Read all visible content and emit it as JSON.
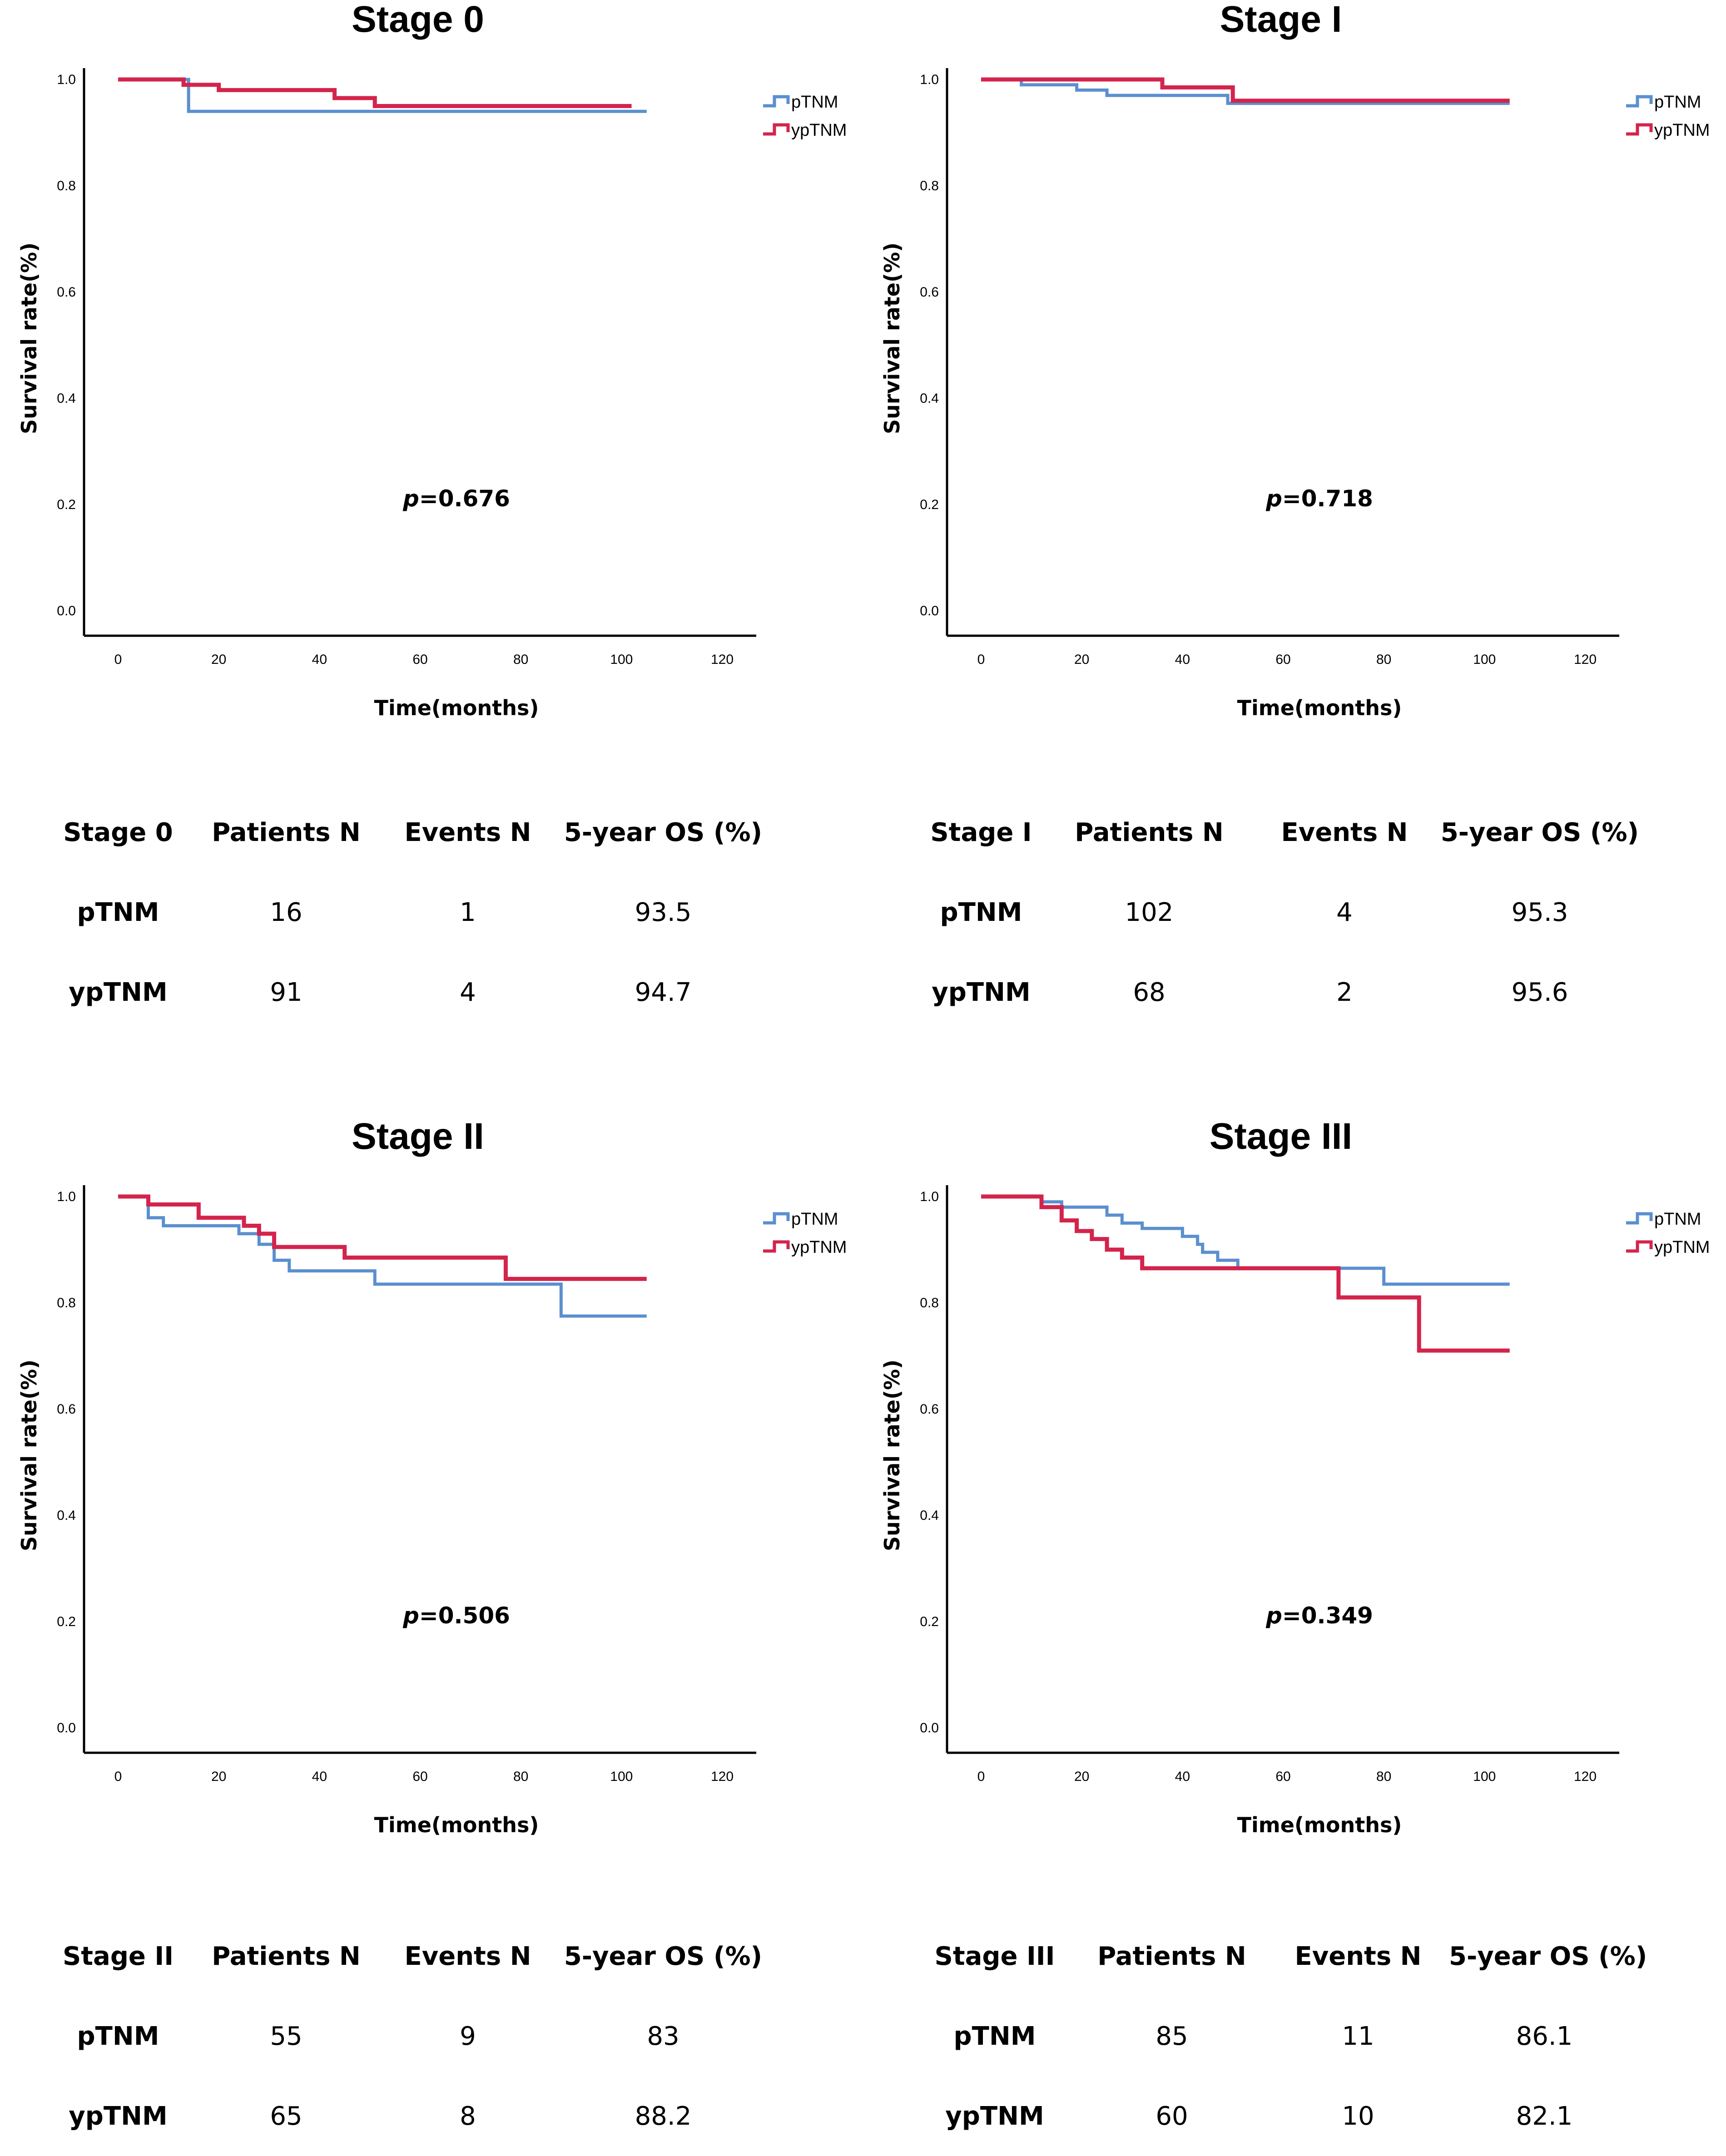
{
  "colors": {
    "pTNM": "#5b8fcf",
    "ypTNM": "#d3244c",
    "axis": "#000000"
  },
  "chart_data": [
    {
      "type": "line",
      "title": "Stage 0",
      "xlabel": "Time(months)",
      "ylabel": "Survival rate(%)",
      "xlim": [
        0,
        120
      ],
      "ylim": [
        0,
        1
      ],
      "xticks": [
        "0",
        "20",
        "40",
        "60",
        "80",
        "100",
        "120"
      ],
      "yticks": [
        "0.0",
        "0.2",
        "0.4",
        "0.6",
        "0.8",
        "1.0"
      ],
      "legend": [
        "pTNM",
        "ypTNM"
      ],
      "annotation": {
        "italic": "p",
        "rest": "=0.676"
      },
      "series": [
        {
          "name": "pTNM",
          "x": [
            0,
            13,
            14,
            105
          ],
          "y": [
            1.0,
            1.0,
            0.94,
            0.94
          ]
        },
        {
          "name": "ypTNM",
          "x": [
            0,
            13,
            20,
            43,
            51,
            102
          ],
          "y": [
            1.0,
            0.99,
            0.98,
            0.965,
            0.95,
            0.95
          ]
        }
      ]
    },
    {
      "type": "line",
      "title": "Stage I",
      "xlabel": "Time(months)",
      "ylabel": "Survival rate(%)",
      "xlim": [
        0,
        120
      ],
      "ylim": [
        0,
        1
      ],
      "xticks": [
        "0",
        "20",
        "40",
        "60",
        "80",
        "100",
        "120"
      ],
      "yticks": [
        "0.0",
        "0.2",
        "0.4",
        "0.6",
        "0.8",
        "1.0"
      ],
      "legend": [
        "pTNM",
        "ypTNM"
      ],
      "annotation": {
        "italic": "p",
        "rest": "=0.718"
      },
      "series": [
        {
          "name": "pTNM",
          "x": [
            0,
            8,
            19,
            25,
            49,
            105
          ],
          "y": [
            1.0,
            0.99,
            0.98,
            0.97,
            0.955,
            0.955
          ]
        },
        {
          "name": "ypTNM",
          "x": [
            0,
            36,
            50,
            105
          ],
          "y": [
            1.0,
            0.985,
            0.96,
            0.96
          ]
        }
      ]
    },
    {
      "type": "line",
      "title": "Stage II",
      "xlabel": "Time(months)",
      "ylabel": "Survival rate(%)",
      "xlim": [
        0,
        120
      ],
      "ylim": [
        0,
        1
      ],
      "xticks": [
        "0",
        "20",
        "40",
        "60",
        "80",
        "100",
        "120"
      ],
      "yticks": [
        "0.0",
        "0.2",
        "0.4",
        "0.6",
        "0.8",
        "1.0"
      ],
      "legend": [
        "pTNM",
        "ypTNM"
      ],
      "annotation": {
        "italic": "p",
        "rest": "=0.506"
      },
      "series": [
        {
          "name": "pTNM",
          "x": [
            0,
            6,
            9,
            24,
            28,
            31,
            34,
            51,
            88,
            105
          ],
          "y": [
            1.0,
            0.96,
            0.945,
            0.93,
            0.91,
            0.88,
            0.86,
            0.835,
            0.775,
            0.775
          ]
        },
        {
          "name": "ypTNM",
          "x": [
            0,
            6,
            16,
            25,
            28,
            31,
            45,
            77,
            105
          ],
          "y": [
            1.0,
            0.985,
            0.96,
            0.945,
            0.93,
            0.905,
            0.885,
            0.845,
            0.845
          ]
        }
      ]
    },
    {
      "type": "line",
      "title": "Stage III",
      "xlabel": "Time(months)",
      "ylabel": "Survival rate(%)",
      "xlim": [
        0,
        120
      ],
      "ylim": [
        0,
        1
      ],
      "xticks": [
        "0",
        "20",
        "40",
        "60",
        "80",
        "100",
        "120"
      ],
      "yticks": [
        "0.0",
        "0.2",
        "0.4",
        "0.6",
        "0.8",
        "1.0"
      ],
      "legend": [
        "pTNM",
        "ypTNM"
      ],
      "annotation": {
        "italic": "p",
        "rest": "=0.349"
      },
      "series": [
        {
          "name": "pTNM",
          "x": [
            0,
            12,
            16,
            25,
            28,
            32,
            40,
            43,
            44,
            47,
            51,
            80,
            105
          ],
          "y": [
            1.0,
            0.99,
            0.98,
            0.965,
            0.95,
            0.94,
            0.925,
            0.91,
            0.895,
            0.88,
            0.865,
            0.835,
            0.835
          ]
        },
        {
          "name": "ypTNM",
          "x": [
            0,
            12,
            16,
            19,
            22,
            25,
            28,
            32,
            71,
            87,
            105
          ],
          "y": [
            1.0,
            0.98,
            0.955,
            0.935,
            0.92,
            0.9,
            0.885,
            0.865,
            0.81,
            0.71,
            0.71
          ]
        }
      ]
    }
  ],
  "tables": [
    {
      "headers": [
        "Stage 0",
        "Patients N",
        "Events N",
        "5-year OS (%)"
      ],
      "rows": [
        [
          "pTNM",
          "16",
          "1",
          "93.5"
        ],
        [
          "ypTNM",
          "91",
          "4",
          "94.7"
        ]
      ]
    },
    {
      "headers": [
        "Stage I",
        "Patients N",
        "Events N",
        "5-year OS (%)"
      ],
      "rows": [
        [
          "pTNM",
          "102",
          "4",
          "95.3"
        ],
        [
          "ypTNM",
          "68",
          "2",
          "95.6"
        ]
      ]
    },
    {
      "headers": [
        "Stage II",
        "Patients N",
        "Events N",
        "5-year OS (%)"
      ],
      "rows": [
        [
          "pTNM",
          "55",
          "9",
          "83"
        ],
        [
          "ypTNM",
          "65",
          "8",
          "88.2"
        ]
      ]
    },
    {
      "headers": [
        "Stage III",
        "Patients N",
        "Events N",
        "5-year OS (%)"
      ],
      "rows": [
        [
          "pTNM",
          "85",
          "11",
          "86.1"
        ],
        [
          "ypTNM",
          "60",
          "10",
          "82.1"
        ]
      ]
    }
  ]
}
